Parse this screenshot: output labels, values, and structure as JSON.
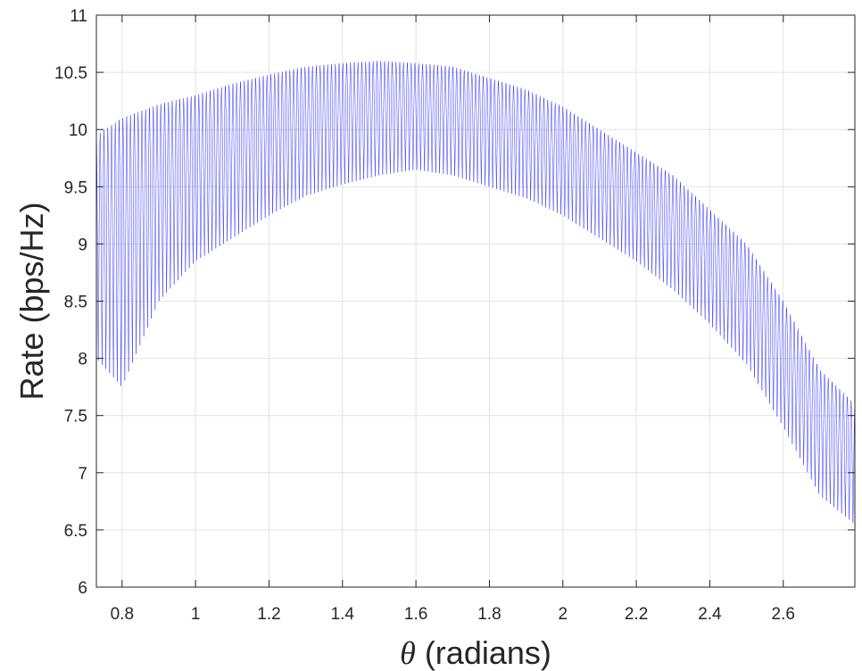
{
  "chart_data": {
    "type": "line",
    "title": "",
    "xlabel_symbol": "θ",
    "xlabel_rest": " (radians)",
    "ylabel": "Rate (bps/Hz)",
    "xlim": [
      0.73,
      2.795
    ],
    "ylim": [
      6,
      11
    ],
    "xticks": [
      0.8,
      1,
      1.2,
      1.4,
      1.6,
      1.8,
      2,
      2.2,
      2.4,
      2.6
    ],
    "xtick_labels": [
      "0.8",
      "1",
      "1.2",
      "1.4",
      "1.6",
      "1.8",
      "2",
      "2.2",
      "2.4",
      "2.6"
    ],
    "yticks": [
      6,
      6.5,
      7,
      7.5,
      8,
      8.5,
      9,
      9.5,
      10,
      10.5,
      11
    ],
    "ytick_labels": [
      "6",
      "6.5",
      "7",
      "7.5",
      "8",
      "8.5",
      "9",
      "9.5",
      "10",
      "10.5",
      "11"
    ],
    "grid": true,
    "line_color": "#0000ff",
    "series": [
      {
        "upper_envelope": {
          "x": [
            0.73,
            0.8,
            0.9,
            1.0,
            1.1,
            1.2,
            1.3,
            1.4,
            1.5,
            1.6,
            1.7,
            1.8,
            1.9,
            2.0,
            2.1,
            2.2,
            2.3,
            2.4,
            2.5,
            2.6,
            2.7,
            2.795
          ],
          "y": [
            9.95,
            10.1,
            10.22,
            10.3,
            10.4,
            10.48,
            10.55,
            10.58,
            10.6,
            10.58,
            10.55,
            10.45,
            10.35,
            10.2,
            10.0,
            9.8,
            9.6,
            9.3,
            9.0,
            8.5,
            7.9,
            7.6
          ]
        },
        "lower_envelope": {
          "x": [
            0.73,
            0.8,
            0.9,
            1.0,
            1.1,
            1.2,
            1.3,
            1.4,
            1.5,
            1.6,
            1.7,
            1.8,
            1.9,
            2.0,
            2.1,
            2.2,
            2.3,
            2.4,
            2.5,
            2.6,
            2.7,
            2.795
          ],
          "y": [
            8.0,
            7.75,
            8.5,
            8.85,
            9.05,
            9.25,
            9.42,
            9.52,
            9.6,
            9.65,
            9.6,
            9.5,
            9.4,
            9.25,
            9.05,
            8.85,
            8.6,
            8.3,
            7.95,
            7.4,
            6.8,
            6.55
          ]
        },
        "oscillations": 200
      }
    ]
  }
}
